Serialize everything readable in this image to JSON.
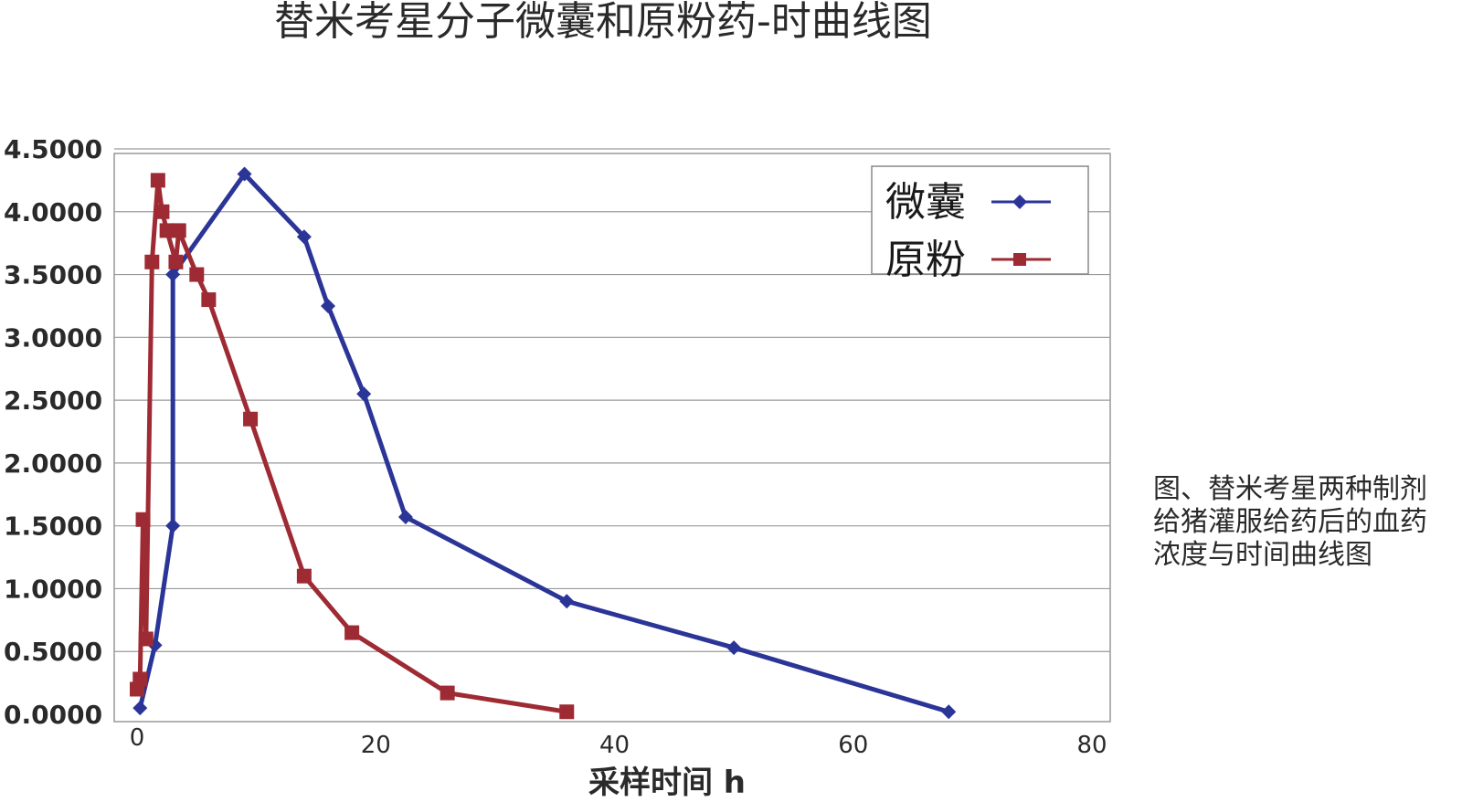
{
  "chart_data": {
    "type": "line",
    "title": "替米考星分子微囊和原粉药-时曲线图",
    "xlabel": "采样时间 h",
    "ylabel": "",
    "xlim": [
      0,
      80
    ],
    "ylim": [
      0,
      4.5
    ],
    "x_ticks": [
      0,
      20,
      40,
      60,
      80
    ],
    "y_ticks": [
      0,
      0.5,
      1,
      1.5,
      2,
      2.5,
      3,
      3.5,
      4,
      4.5
    ],
    "y_tick_labels": [
      "0.0000",
      "0.5000",
      "1.0000",
      "1.5000",
      "2.0000",
      "2.5000",
      "3.0000",
      "3.5000",
      "4.0000",
      "4.5000"
    ],
    "x_tick_labels": [
      "0",
      "20",
      "40",
      "60",
      "80"
    ],
    "grid": "horizontal",
    "legend": "top-right",
    "series": [
      {
        "name": "微囊",
        "color": "#2b3597",
        "marker": "diamond",
        "points": [
          [
            0.25,
            0.05
          ],
          [
            1.5,
            0.55
          ],
          [
            3,
            1.5
          ],
          [
            3,
            3.5
          ],
          [
            9,
            4.3
          ],
          [
            14,
            3.8
          ],
          [
            16,
            3.25
          ],
          [
            19,
            2.55
          ],
          [
            22.5,
            1.57
          ],
          [
            36,
            0.9
          ],
          [
            50,
            0.53
          ],
          [
            68,
            0.02
          ]
        ]
      },
      {
        "name": "原粉",
        "color": "#9e2a33",
        "marker": "square",
        "points": [
          [
            0,
            0.2
          ],
          [
            0.25,
            0.28
          ],
          [
            0.5,
            1.55
          ],
          [
            0.75,
            0.6
          ],
          [
            1.25,
            3.6
          ],
          [
            1.75,
            4.25
          ],
          [
            2.1,
            4.0
          ],
          [
            2.5,
            3.85
          ],
          [
            3.25,
            3.6
          ],
          [
            3.5,
            3.85
          ],
          [
            5,
            3.5
          ],
          [
            6,
            3.3
          ],
          [
            9.5,
            2.35
          ],
          [
            14,
            1.1
          ],
          [
            18,
            0.65
          ],
          [
            26,
            0.17
          ],
          [
            36,
            0.02
          ]
        ]
      }
    ]
  },
  "caption": {
    "lines": [
      "图、替米考星两种制剂",
      "给猪灌服给药后的血药",
      "浓度与时间曲线图"
    ]
  }
}
